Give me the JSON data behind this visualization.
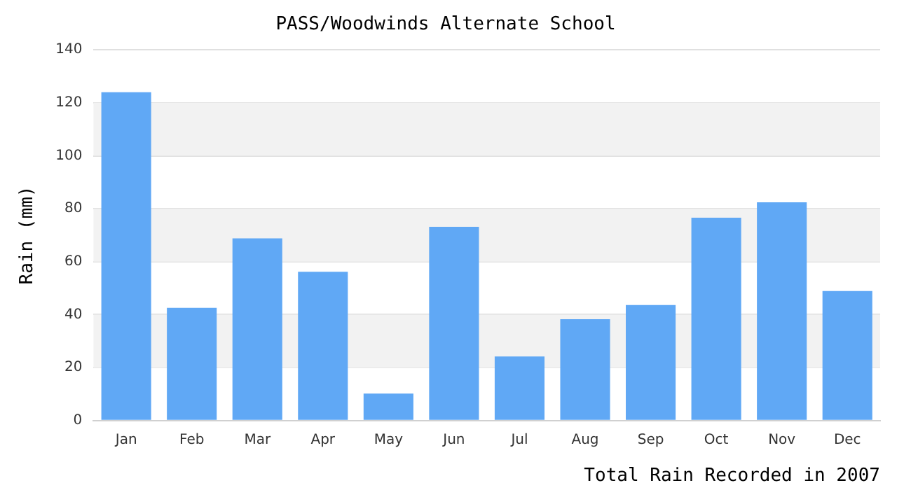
{
  "chart_data": {
    "type": "bar",
    "title": "PASS/Woodwinds Alternate School",
    "xlabel": "Total Rain Recorded in 2007",
    "ylabel": "Rain (mm)",
    "categories": [
      "Jan",
      "Feb",
      "Mar",
      "Apr",
      "May",
      "Jun",
      "Jul",
      "Aug",
      "Sep",
      "Oct",
      "Nov",
      "Dec"
    ],
    "values": [
      124,
      42.6,
      68.8,
      56.2,
      10.2,
      73.2,
      24.2,
      38.3,
      43.6,
      76.6,
      82.4,
      48.9
    ],
    "color": "#60a8f5",
    "ylim": [
      0,
      140
    ],
    "yticks": [
      0,
      20,
      40,
      60,
      80,
      100,
      120,
      140
    ],
    "grid": "y",
    "legend": false
  }
}
